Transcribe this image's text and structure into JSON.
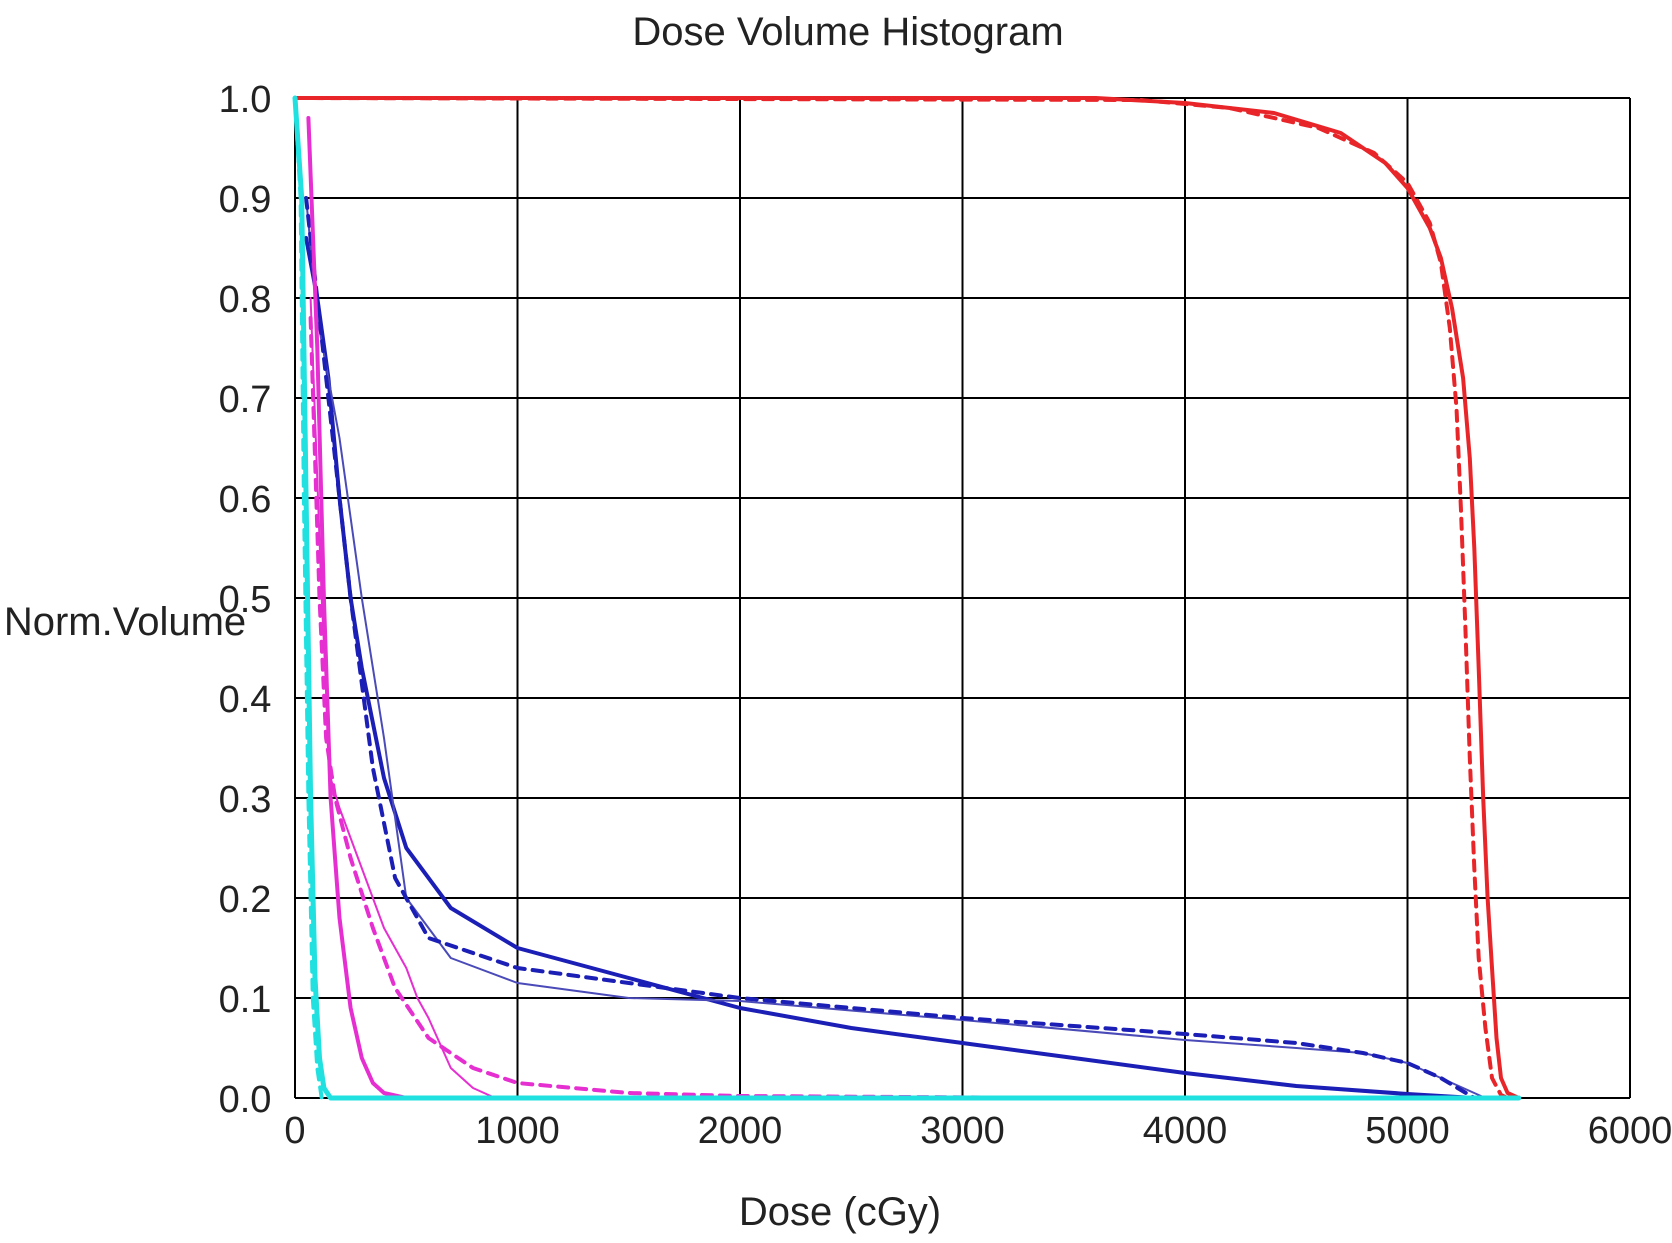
{
  "chart_data": {
    "type": "line",
    "title": "Dose Volume Histogram",
    "xlabel": "Dose (cGy)",
    "ylabel": "Norm.Volume",
    "xlim": [
      0,
      6000
    ],
    "ylim": [
      0,
      1.0
    ],
    "x_ticks": [
      "0",
      "1000",
      "2000",
      "3000",
      "4000",
      "5000",
      "6000"
    ],
    "y_ticks": [
      "0.0",
      "0.1",
      "0.2",
      "0.3",
      "0.4",
      "0.5",
      "0.6",
      "0.7",
      "0.8",
      "0.9",
      "1.0"
    ],
    "grid": true,
    "legend": "none",
    "colors": {
      "red": "#e8262a",
      "blue": "#1c1fb5",
      "blue_thin": "#4a4ab8",
      "magenta": "#e62fd0",
      "cyan": "#21e0e0",
      "grid": "#000000"
    },
    "series": [
      {
        "color": "red",
        "style": "solid",
        "width": 4,
        "points": [
          [
            0,
            1.0
          ],
          [
            3600,
            1.0
          ],
          [
            4000,
            0.995
          ],
          [
            4400,
            0.985
          ],
          [
            4700,
            0.965
          ],
          [
            4900,
            0.935
          ],
          [
            5000,
            0.91
          ],
          [
            5100,
            0.87
          ],
          [
            5150,
            0.84
          ],
          [
            5200,
            0.79
          ],
          [
            5250,
            0.72
          ],
          [
            5280,
            0.64
          ],
          [
            5300,
            0.55
          ],
          [
            5320,
            0.43
          ],
          [
            5340,
            0.3
          ],
          [
            5360,
            0.2
          ],
          [
            5380,
            0.13
          ],
          [
            5400,
            0.06
          ],
          [
            5420,
            0.02
          ],
          [
            5450,
            0.005
          ],
          [
            5500,
            0.0
          ]
        ]
      },
      {
        "color": "red",
        "style": "dashed",
        "width": 4,
        "points": [
          [
            0,
            1.0
          ],
          [
            3800,
            0.998
          ],
          [
            4200,
            0.99
          ],
          [
            4600,
            0.97
          ],
          [
            4850,
            0.945
          ],
          [
            5000,
            0.915
          ],
          [
            5100,
            0.875
          ],
          [
            5150,
            0.835
          ],
          [
            5190,
            0.77
          ],
          [
            5220,
            0.69
          ],
          [
            5240,
            0.59
          ],
          [
            5260,
            0.47
          ],
          [
            5280,
            0.34
          ],
          [
            5300,
            0.23
          ],
          [
            5320,
            0.14
          ],
          [
            5350,
            0.07
          ],
          [
            5380,
            0.02
          ],
          [
            5420,
            0.003
          ],
          [
            5450,
            0.0
          ]
        ]
      },
      {
        "color": "blue",
        "style": "solid",
        "width": 4,
        "points": [
          [
            50,
            0.86
          ],
          [
            100,
            0.8
          ],
          [
            150,
            0.72
          ],
          [
            200,
            0.6
          ],
          [
            250,
            0.5
          ],
          [
            300,
            0.43
          ],
          [
            400,
            0.32
          ],
          [
            500,
            0.25
          ],
          [
            700,
            0.19
          ],
          [
            1000,
            0.15
          ],
          [
            1500,
            0.12
          ],
          [
            2000,
            0.09
          ],
          [
            2500,
            0.07
          ],
          [
            3000,
            0.055
          ],
          [
            3500,
            0.04
          ],
          [
            4000,
            0.025
          ],
          [
            4500,
            0.012
          ],
          [
            5000,
            0.004
          ],
          [
            5300,
            0.0
          ]
        ]
      },
      {
        "color": "blue_thin",
        "style": "solid",
        "width": 2,
        "points": [
          [
            50,
            0.9
          ],
          [
            100,
            0.78
          ],
          [
            200,
            0.66
          ],
          [
            300,
            0.5
          ],
          [
            400,
            0.36
          ],
          [
            500,
            0.2
          ],
          [
            700,
            0.14
          ],
          [
            1000,
            0.115
          ],
          [
            1500,
            0.1
          ],
          [
            2000,
            0.097
          ],
          [
            3000,
            0.078
          ],
          [
            4000,
            0.058
          ],
          [
            4500,
            0.05
          ],
          [
            4800,
            0.045
          ],
          [
            5000,
            0.035
          ],
          [
            5200,
            0.015
          ],
          [
            5350,
            0.0
          ]
        ]
      },
      {
        "color": "blue",
        "style": "dashed",
        "width": 4,
        "points": [
          [
            50,
            0.9
          ],
          [
            150,
            0.7
          ],
          [
            250,
            0.5
          ],
          [
            350,
            0.33
          ],
          [
            450,
            0.22
          ],
          [
            600,
            0.16
          ],
          [
            1000,
            0.13
          ],
          [
            1500,
            0.115
          ],
          [
            2000,
            0.1
          ],
          [
            2500,
            0.09
          ],
          [
            3000,
            0.08
          ],
          [
            3500,
            0.072
          ],
          [
            4000,
            0.064
          ],
          [
            4500,
            0.055
          ],
          [
            4800,
            0.045
          ],
          [
            5000,
            0.035
          ],
          [
            5150,
            0.02
          ],
          [
            5300,
            0.0
          ]
        ]
      },
      {
        "color": "magenta",
        "style": "solid",
        "width": 4,
        "points": [
          [
            60,
            0.98
          ],
          [
            100,
            0.75
          ],
          [
            130,
            0.5
          ],
          [
            160,
            0.3
          ],
          [
            200,
            0.18
          ],
          [
            250,
            0.09
          ],
          [
            300,
            0.04
          ],
          [
            350,
            0.015
          ],
          [
            400,
            0.005
          ],
          [
            500,
            0.0
          ],
          [
            3500,
            0.0
          ]
        ]
      },
      {
        "color": "magenta",
        "style": "solid",
        "width": 2,
        "points": [
          [
            70,
            0.8
          ],
          [
            120,
            0.5
          ],
          [
            160,
            0.32
          ],
          [
            200,
            0.29
          ],
          [
            250,
            0.26
          ],
          [
            400,
            0.17
          ],
          [
            500,
            0.13
          ],
          [
            550,
            0.1
          ],
          [
            600,
            0.08
          ],
          [
            700,
            0.03
          ],
          [
            800,
            0.01
          ],
          [
            900,
            0.0
          ]
        ]
      },
      {
        "color": "magenta",
        "style": "dashed",
        "width": 4,
        "points": [
          [
            70,
            0.78
          ],
          [
            110,
            0.5
          ],
          [
            140,
            0.36
          ],
          [
            180,
            0.3
          ],
          [
            250,
            0.24
          ],
          [
            350,
            0.17
          ],
          [
            450,
            0.11
          ],
          [
            600,
            0.06
          ],
          [
            800,
            0.03
          ],
          [
            1000,
            0.015
          ],
          [
            1500,
            0.005
          ],
          [
            2000,
            0.002
          ],
          [
            3500,
            0.0
          ]
        ]
      },
      {
        "color": "cyan",
        "style": "solid",
        "width": 5,
        "points": [
          [
            0,
            1.0
          ],
          [
            30,
            0.9
          ],
          [
            50,
            0.6
          ],
          [
            70,
            0.3
          ],
          [
            90,
            0.12
          ],
          [
            110,
            0.04
          ],
          [
            130,
            0.01
          ],
          [
            160,
            0.0
          ],
          [
            5500,
            0.0
          ]
        ]
      },
      {
        "color": "cyan",
        "style": "dashed",
        "width": 4,
        "points": [
          [
            0,
            1.0
          ],
          [
            25,
            0.9
          ],
          [
            40,
            0.6
          ],
          [
            60,
            0.3
          ],
          [
            80,
            0.1
          ],
          [
            100,
            0.03
          ],
          [
            120,
            0.0
          ]
        ]
      }
    ]
  }
}
